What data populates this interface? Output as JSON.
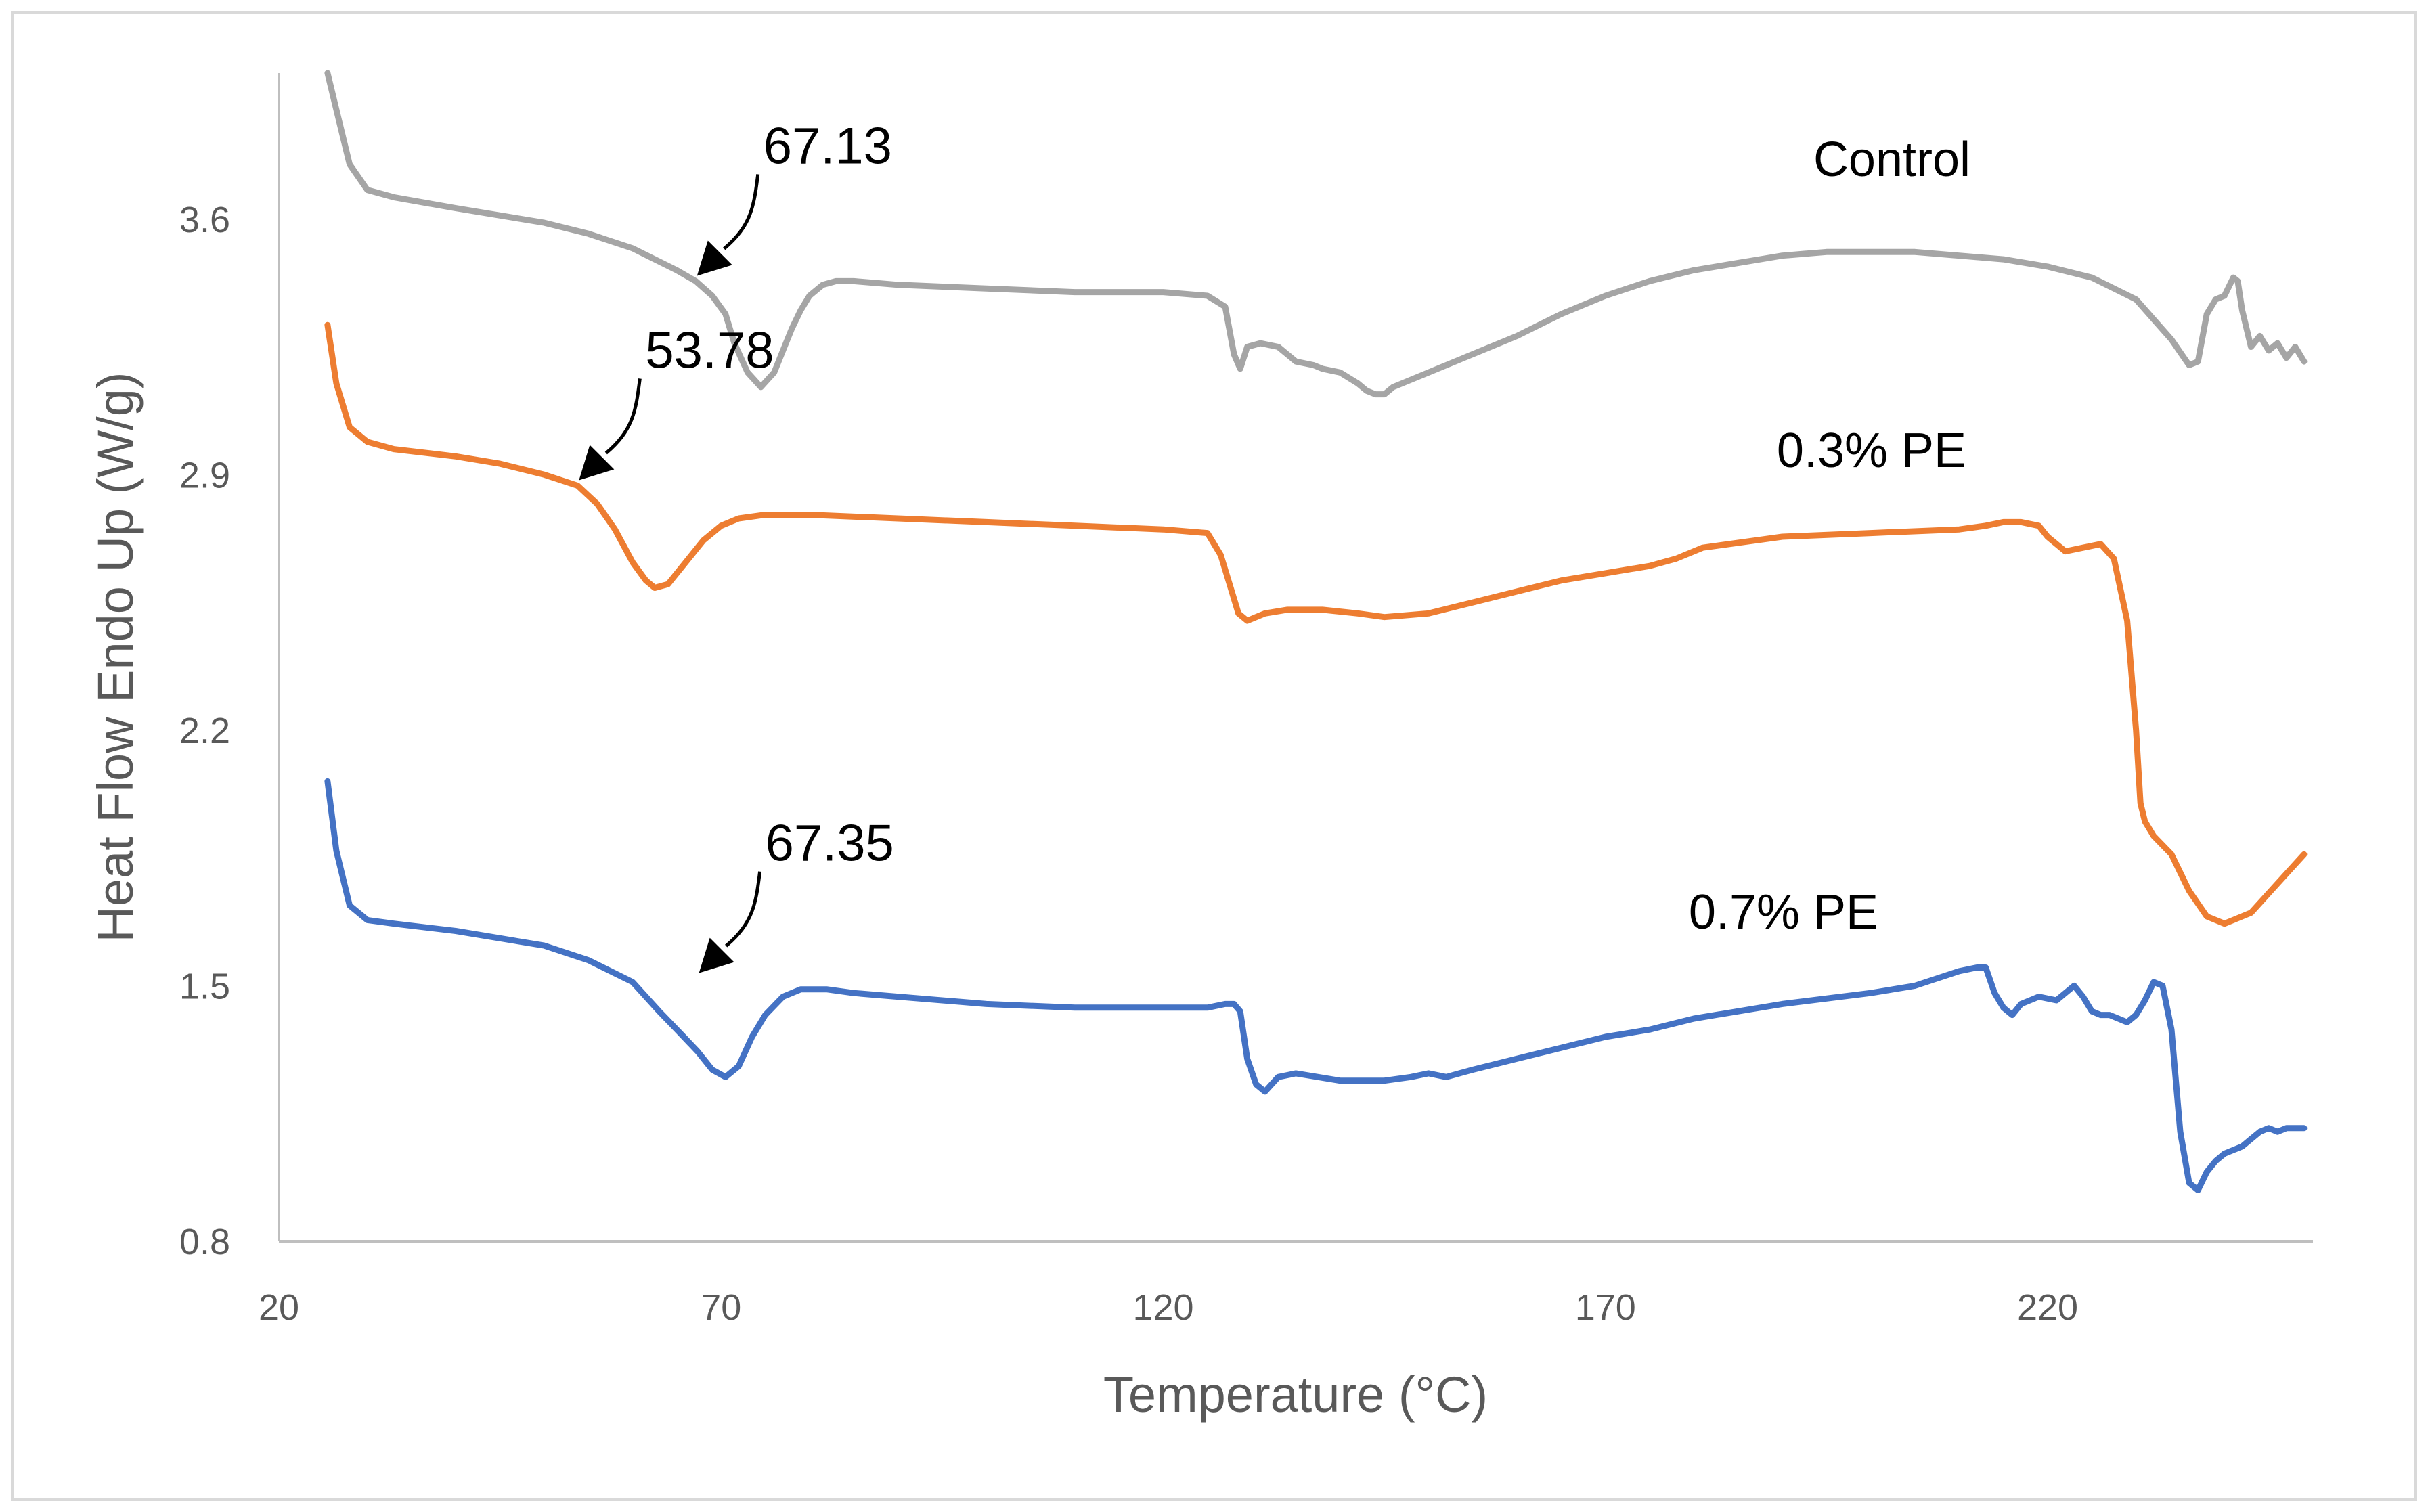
{
  "chart_data": {
    "type": "line",
    "xlabel": "Temperature (°C)",
    "ylabel": "Heat Flow Endo Up (W/g)",
    "xlim": [
      20,
      250
    ],
    "ylim": [
      0.8,
      4.0
    ],
    "xticks": [
      20,
      70,
      120,
      170,
      220
    ],
    "xtick_labels": [
      "20",
      "70",
      "120",
      "170",
      "220"
    ],
    "yticks": [
      0.8,
      1.5,
      2.2,
      2.9,
      3.6
    ],
    "ytick_labels": [
      "0.8",
      "1.5",
      "2.2",
      "2.9",
      "3.6"
    ],
    "grid": false,
    "legend": "none",
    "series": [
      {
        "name": "Control",
        "color": "#A5A5A5",
        "x": [
          25.5,
          26.5,
          28,
          30,
          33,
          40,
          50,
          55,
          60,
          65,
          67.13,
          69,
          70.5,
          71.5,
          73,
          74.5,
          76,
          77,
          78,
          79,
          80,
          81.5,
          83,
          85,
          90,
          100,
          110,
          120,
          125,
          127,
          128,
          128.7,
          129.5,
          131,
          133,
          135,
          137,
          138,
          140,
          142,
          143,
          144,
          145,
          146,
          147,
          150,
          155,
          160,
          165,
          170,
          175,
          180,
          185,
          190,
          195,
          200,
          205,
          210,
          215,
          220,
          225,
          230,
          234,
          236,
          237,
          238,
          239,
          240,
          241,
          241.5,
          242,
          243,
          244,
          245,
          246,
          247,
          248,
          249
        ],
        "y": [
          4.0,
          3.9,
          3.75,
          3.68,
          3.66,
          3.63,
          3.59,
          3.56,
          3.52,
          3.46,
          3.43,
          3.39,
          3.34,
          3.26,
          3.18,
          3.14,
          3.18,
          3.24,
          3.3,
          3.35,
          3.39,
          3.42,
          3.43,
          3.43,
          3.42,
          3.41,
          3.4,
          3.4,
          3.39,
          3.36,
          3.23,
          3.19,
          3.25,
          3.26,
          3.25,
          3.21,
          3.2,
          3.19,
          3.18,
          3.15,
          3.13,
          3.12,
          3.12,
          3.14,
          3.15,
          3.18,
          3.23,
          3.28,
          3.34,
          3.39,
          3.43,
          3.46,
          3.48,
          3.5,
          3.51,
          3.51,
          3.51,
          3.5,
          3.49,
          3.47,
          3.44,
          3.38,
          3.27,
          3.2,
          3.21,
          3.34,
          3.38,
          3.39,
          3.44,
          3.43,
          3.35,
          3.25,
          3.28,
          3.24,
          3.26,
          3.22,
          3.25,
          3.21
        ]
      },
      {
        "name": "0.3% PE",
        "color": "#ED7D31",
        "x": [
          25.5,
          26.5,
          28,
          30,
          33,
          40,
          45,
          50,
          53.78,
          56,
          58,
          60,
          61.5,
          62.5,
          64,
          66,
          68,
          70,
          72,
          75,
          80,
          90,
          100,
          110,
          120,
          125,
          126.5,
          127.5,
          128.5,
          129.5,
          130.5,
          131.5,
          134,
          138,
          142,
          145,
          150,
          155,
          160,
          165,
          170,
          175,
          178,
          181,
          190,
          200,
          210,
          213,
          215,
          217,
          219,
          220,
          222,
          224,
          226,
          227.5,
          229,
          230,
          230.5,
          231,
          232,
          234,
          236,
          238,
          240,
          243,
          246,
          249
        ],
        "y": [
          3.31,
          3.15,
          3.03,
          2.99,
          2.97,
          2.95,
          2.93,
          2.9,
          2.87,
          2.82,
          2.75,
          2.66,
          2.61,
          2.59,
          2.6,
          2.66,
          2.72,
          2.76,
          2.78,
          2.79,
          2.79,
          2.78,
          2.77,
          2.76,
          2.75,
          2.74,
          2.68,
          2.6,
          2.52,
          2.5,
          2.51,
          2.52,
          2.53,
          2.53,
          2.52,
          2.51,
          2.52,
          2.55,
          2.58,
          2.61,
          2.63,
          2.65,
          2.67,
          2.7,
          2.73,
          2.74,
          2.75,
          2.76,
          2.77,
          2.77,
          2.76,
          2.73,
          2.69,
          2.7,
          2.71,
          2.67,
          2.5,
          2.2,
          2.0,
          1.95,
          1.91,
          1.86,
          1.76,
          1.69,
          1.67,
          1.7,
          1.78,
          1.86
        ]
      },
      {
        "name": "0.7% PE",
        "color": "#4472C4",
        "x": [
          25.5,
          26.5,
          28,
          30,
          33,
          40,
          50,
          55,
          60,
          63,
          65,
          67.35,
          69,
          70.5,
          72,
          73.5,
          75,
          77,
          79,
          82,
          85,
          90,
          100,
          110,
          120,
          125,
          127,
          128,
          128.7,
          129.5,
          130.5,
          131.5,
          133,
          135,
          140,
          145,
          148,
          150,
          152,
          155,
          160,
          165,
          170,
          175,
          180,
          190,
          200,
          205,
          210,
          212,
          213,
          214,
          215,
          216,
          217,
          219,
          221,
          222,
          223,
          224,
          225,
          226,
          227,
          228,
          229,
          230,
          231,
          232,
          233,
          234,
          235,
          236,
          237,
          238,
          239,
          240,
          242,
          243,
          244,
          245,
          246,
          247,
          249
        ],
        "y": [
          2.06,
          1.87,
          1.72,
          1.68,
          1.67,
          1.65,
          1.61,
          1.57,
          1.51,
          1.43,
          1.38,
          1.32,
          1.27,
          1.25,
          1.28,
          1.36,
          1.42,
          1.47,
          1.49,
          1.49,
          1.48,
          1.47,
          1.45,
          1.44,
          1.44,
          1.44,
          1.45,
          1.45,
          1.43,
          1.3,
          1.23,
          1.21,
          1.25,
          1.26,
          1.24,
          1.24,
          1.25,
          1.26,
          1.25,
          1.27,
          1.3,
          1.33,
          1.36,
          1.38,
          1.41,
          1.45,
          1.48,
          1.5,
          1.54,
          1.55,
          1.55,
          1.48,
          1.44,
          1.42,
          1.45,
          1.47,
          1.46,
          1.48,
          1.5,
          1.47,
          1.43,
          1.42,
          1.42,
          1.41,
          1.4,
          1.42,
          1.46,
          1.51,
          1.5,
          1.38,
          1.1,
          0.96,
          0.94,
          0.99,
          1.02,
          1.04,
          1.06,
          1.08,
          1.1,
          1.11,
          1.1,
          1.11,
          1.11
        ]
      }
    ],
    "annotations": [
      {
        "text": "67.13",
        "x": 67.13,
        "y": 3.43
      },
      {
        "text": "53.78",
        "x": 53.78,
        "y": 2.87
      },
      {
        "text": "67.35",
        "x": 67.35,
        "y": 1.52
      }
    ],
    "series_labels": [
      {
        "text": "Control",
        "series": 0
      },
      {
        "text": "0.3% PE",
        "series": 1
      },
      {
        "text": "0.7% PE",
        "series": 2
      }
    ]
  }
}
